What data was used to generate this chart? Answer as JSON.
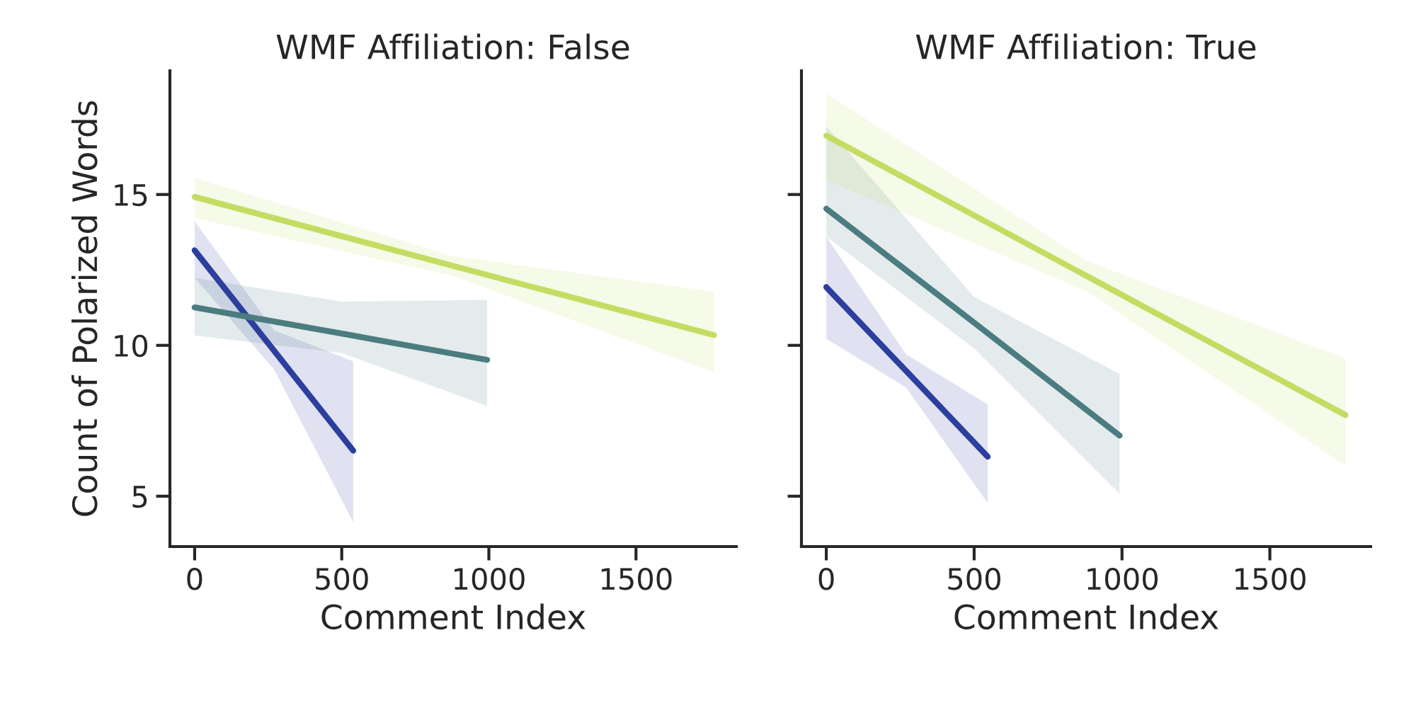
{
  "chart_data": [
    {
      "type": "line",
      "title": "WMF Affiliation: False",
      "xlabel": "Comment Index",
      "ylabel": "Count of Polarized Words",
      "xlim": [
        -84,
        1841
      ],
      "ylim": [
        3.33,
        19.1
      ],
      "xticks": [
        0,
        500,
        1000,
        1500
      ],
      "yticks": [
        5,
        10,
        15
      ],
      "series": [
        {
          "color": "#2c3e9e",
          "x": [
            0,
            270,
            539
          ],
          "values": [
            13.15,
            9.82,
            6.51
          ],
          "lower": [
            12.24,
            9.2,
            4.14
          ],
          "upper": [
            14.11,
            10.5,
            9.47
          ]
        },
        {
          "color": "#4a7c80",
          "x": [
            0,
            500,
            994
          ],
          "values": [
            11.26,
            10.39,
            9.52
          ],
          "lower": [
            10.33,
            9.75,
            7.99
          ],
          "upper": [
            12.24,
            11.45,
            11.51
          ]
        },
        {
          "color": "#c5dc63",
          "x": [
            0,
            880,
            1765
          ],
          "values": [
            14.92,
            12.63,
            10.34
          ],
          "lower": [
            14.22,
            12.3,
            9.1
          ],
          "upper": [
            15.55,
            12.95,
            11.78
          ]
        }
      ]
    },
    {
      "type": "line",
      "title": "WMF Affiliation: True",
      "xlabel": "Comment Index",
      "xlim": [
        -84,
        1841
      ],
      "ylim": [
        3.33,
        19.1
      ],
      "xticks": [
        0,
        500,
        1000,
        1500
      ],
      "yticks": [
        5,
        10,
        15
      ],
      "tick_labels": "x",
      "series": [
        {
          "color": "#2c3e9e",
          "x": [
            0,
            270,
            546
          ],
          "values": [
            11.93,
            9.15,
            6.31
          ],
          "lower": [
            10.22,
            8.6,
            4.77
          ],
          "upper": [
            13.6,
            9.7,
            8.04
          ]
        },
        {
          "color": "#4a7c80",
          "x": [
            0,
            500,
            992
          ],
          "values": [
            14.53,
            10.75,
            7.01
          ],
          "lower": [
            13.6,
            9.9,
            5.08
          ],
          "upper": [
            17.26,
            11.6,
            9.05
          ]
        },
        {
          "color": "#c5dc63",
          "x": [
            0,
            880,
            1756
          ],
          "values": [
            16.95,
            12.3,
            7.69
          ],
          "lower": [
            15.48,
            11.8,
            6.01
          ],
          "upper": [
            18.35,
            12.8,
            9.56
          ]
        }
      ]
    }
  ]
}
